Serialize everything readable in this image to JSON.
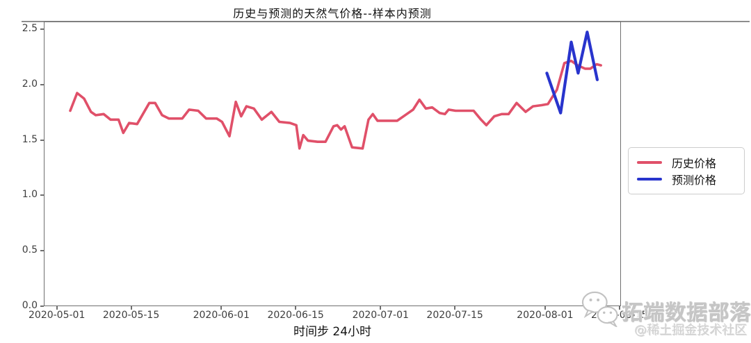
{
  "chart_data": {
    "type": "line",
    "title": "历史与预测的天然气价格--样本内预测",
    "xlabel": "时间步  24小时",
    "ylabel": "",
    "grid": false,
    "legend_position": "right-outside",
    "x_unit": "days since 2020-05-01",
    "x_tick_labels": [
      "2020-05-01",
      "2020-05-15",
      "2020-06-01",
      "2020-06-15",
      "2020-07-01",
      "2020-07-15",
      "2020-08-01",
      "2020-08-15"
    ],
    "x_tick_days": [
      0,
      14,
      31,
      45,
      61,
      75,
      92,
      106
    ],
    "y_tick_labels": [
      "0.0",
      "0.5",
      "1.0",
      "1.5",
      "2.0",
      "2.5"
    ],
    "y_ticks": [
      0.0,
      0.5,
      1.0,
      1.5,
      2.0,
      2.5
    ],
    "x_domain_days": [
      -2.45,
      106.3
    ],
    "y_domain": [
      0,
      2.569
    ],
    "series": [
      {
        "name": "历史价格",
        "color": "#e05069",
        "width": 3.6,
        "points": [
          [
            2.4,
            1.77
          ],
          [
            3.7,
            1.93
          ],
          [
            5,
            1.88
          ],
          [
            6.3,
            1.76
          ],
          [
            7.2,
            1.73
          ],
          [
            8.7,
            1.74
          ],
          [
            10,
            1.69
          ],
          [
            11.5,
            1.69
          ],
          [
            12.4,
            1.57
          ],
          [
            13.5,
            1.66
          ],
          [
            15,
            1.65
          ],
          [
            17.3,
            1.84
          ],
          [
            18.4,
            1.84
          ],
          [
            19.7,
            1.73
          ],
          [
            21,
            1.7
          ],
          [
            23.5,
            1.7
          ],
          [
            24.8,
            1.78
          ],
          [
            26.5,
            1.77
          ],
          [
            28,
            1.7
          ],
          [
            30,
            1.7
          ],
          [
            31,
            1.67
          ],
          [
            32.4,
            1.54
          ],
          [
            33.6,
            1.85
          ],
          [
            34.6,
            1.72
          ],
          [
            35.6,
            1.81
          ],
          [
            37,
            1.79
          ],
          [
            38.5,
            1.69
          ],
          [
            40.3,
            1.76
          ],
          [
            41.8,
            1.67
          ],
          [
            43.8,
            1.66
          ],
          [
            45,
            1.64
          ],
          [
            45.6,
            1.43
          ],
          [
            46.3,
            1.55
          ],
          [
            47.2,
            1.5
          ],
          [
            49,
            1.49
          ],
          [
            50.5,
            1.49
          ],
          [
            52,
            1.63
          ],
          [
            52.7,
            1.64
          ],
          [
            53.4,
            1.6
          ],
          [
            54.1,
            1.63
          ],
          [
            55.5,
            1.44
          ],
          [
            57.5,
            1.43
          ],
          [
            58.6,
            1.69
          ],
          [
            59.4,
            1.74
          ],
          [
            60.3,
            1.68
          ],
          [
            64,
            1.68
          ],
          [
            65.8,
            1.74
          ],
          [
            67,
            1.78
          ],
          [
            68.2,
            1.87
          ],
          [
            69.4,
            1.79
          ],
          [
            70.6,
            1.8
          ],
          [
            72,
            1.75
          ],
          [
            73,
            1.74
          ],
          [
            73.7,
            1.78
          ],
          [
            75,
            1.77
          ],
          [
            78.4,
            1.77
          ],
          [
            79.8,
            1.69
          ],
          [
            80.8,
            1.64
          ],
          [
            82.3,
            1.72
          ],
          [
            83.7,
            1.74
          ],
          [
            85,
            1.74
          ],
          [
            86.5,
            1.84
          ],
          [
            88.2,
            1.76
          ],
          [
            89.6,
            1.81
          ],
          [
            91.2,
            1.82
          ],
          [
            92.4,
            1.83
          ],
          [
            94.1,
            1.96
          ],
          [
            95.5,
            2.2
          ],
          [
            96.8,
            2.22
          ],
          [
            98,
            2.18
          ],
          [
            99.4,
            2.15
          ],
          [
            100.4,
            2.15
          ],
          [
            101.6,
            2.19
          ],
          [
            102.4,
            2.18
          ]
        ]
      },
      {
        "name": "预测价格",
        "color": "#2834cd",
        "width": 4.2,
        "points": [
          [
            92.2,
            2.11
          ],
          [
            94.8,
            1.75
          ],
          [
            96.8,
            2.39
          ],
          [
            98.1,
            2.11
          ],
          [
            99.8,
            2.48
          ],
          [
            101.7,
            2.05
          ]
        ]
      }
    ]
  },
  "legend": {
    "items": [
      {
        "label": "历史价格",
        "color": "#e05069"
      },
      {
        "label": "预测价格",
        "color": "#2834cd"
      }
    ]
  },
  "watermark": {
    "brand": "拓端数据部落",
    "community": "@稀土掘金技术社区"
  }
}
